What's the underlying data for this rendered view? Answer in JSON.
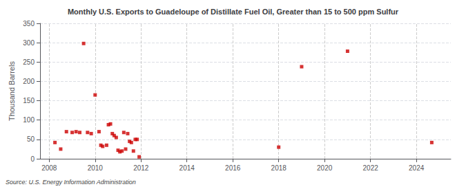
{
  "chart_data": {
    "type": "scatter",
    "title": "Monthly U.S. Exports to Guadeloupe of Distillate Fuel Oil, Greater than 15 to 500 ppm Sulfur",
    "ylabel": "Thousand Barrels",
    "source": "Source: U.S. Energy Information Administration",
    "x": [
      2008.25,
      2008.5,
      2008.75,
      2009.0,
      2009.17,
      2009.33,
      2009.5,
      2009.67,
      2009.83,
      2010.0,
      2010.17,
      2010.25,
      2010.33,
      2010.5,
      2010.58,
      2010.67,
      2010.75,
      2010.83,
      2010.92,
      2011.0,
      2011.08,
      2011.17,
      2011.25,
      2011.33,
      2011.42,
      2011.5,
      2011.58,
      2011.67,
      2011.75,
      2011.83,
      2011.92,
      2018.0,
      2019.0,
      2021.0,
      2024.67
    ],
    "values": [
      42,
      25,
      70,
      68,
      70,
      68,
      298,
      68,
      65,
      165,
      70,
      35,
      32,
      35,
      88,
      90,
      65,
      60,
      55,
      22,
      18,
      20,
      68,
      25,
      65,
      45,
      42,
      20,
      50,
      50,
      5,
      30,
      238,
      278,
      42
    ],
    "color": "#cc0000",
    "marker": "square",
    "xlim": [
      2007.6,
      2025.5
    ],
    "xticks": [
      2008,
      2010,
      2012,
      2014,
      2016,
      2018,
      2020,
      2022,
      2024
    ],
    "ylim": [
      0,
      350
    ],
    "yticks": [
      0,
      50,
      100,
      150,
      200,
      250,
      300,
      350
    ],
    "grid": true
  }
}
